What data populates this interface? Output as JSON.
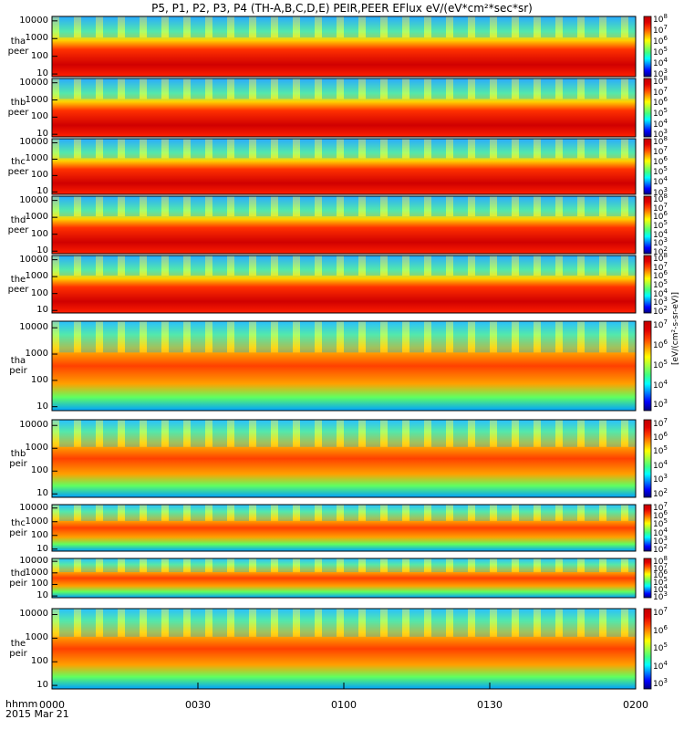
{
  "chart_data": {
    "type": "heatmap",
    "title": "P5, P1, P2, P3, P4 (TH-A,B,C,D,E) PEIR,PEER EFlux eV/(eV*cm²*sec*sr)",
    "x_axis": {
      "ticks": [
        "0000",
        "0030",
        "0100",
        "0130",
        "0200"
      ],
      "range": [
        "00:00",
        "02:00"
      ],
      "label_line1": "hhmm",
      "label_line2": "2015 Mar 21"
    },
    "y_axis": {
      "scale": "log",
      "ticks": [
        "10",
        "100",
        "1000",
        "10000"
      ]
    },
    "colorbar_title": "[eV/(cm²-s-sr-eV)]",
    "panels": [
      {
        "label_line1": "tha",
        "label_line2": "peer",
        "cb_exp": [
          3,
          4,
          5,
          6,
          7,
          8
        ],
        "top_exp": 8
      },
      {
        "label_line1": "thb",
        "label_line2": "peer",
        "cb_exp": [
          3,
          4,
          5,
          6,
          7,
          8
        ],
        "top_exp": 8
      },
      {
        "label_line1": "thc",
        "label_line2": "peer",
        "cb_exp": [
          3,
          4,
          5,
          6,
          7,
          8
        ],
        "top_exp": 8
      },
      {
        "label_line1": "thd",
        "label_line2": "peer",
        "cb_exp": [
          2,
          3,
          4,
          5,
          6,
          7,
          8
        ],
        "top_exp": 8
      },
      {
        "label_line1": "the",
        "label_line2": "peer",
        "cb_exp": [
          2,
          3,
          4,
          5,
          6,
          7,
          8
        ],
        "top_exp": 8
      },
      {
        "label_line1": "tha",
        "label_line2": "peir",
        "cb_exp": [
          3,
          4,
          5,
          6,
          7
        ],
        "top_exp": 7
      },
      {
        "label_line1": "thb",
        "label_line2": "peir",
        "cb_exp": [
          2,
          3,
          4,
          5,
          6,
          7
        ],
        "top_exp": 7
      },
      {
        "label_line1": "thc",
        "label_line2": "peir",
        "cb_exp": [
          2,
          3,
          4,
          5,
          6,
          7
        ],
        "top_exp": 7
      },
      {
        "label_line1": "thd",
        "label_line2": "peir",
        "cb_exp": [
          3,
          4,
          5,
          6,
          7,
          8
        ],
        "top_exp": 8
      },
      {
        "label_line1": "the",
        "label_line2": "peir",
        "cb_exp": [
          3,
          4,
          5,
          6,
          7
        ],
        "top_exp": 7
      }
    ]
  }
}
